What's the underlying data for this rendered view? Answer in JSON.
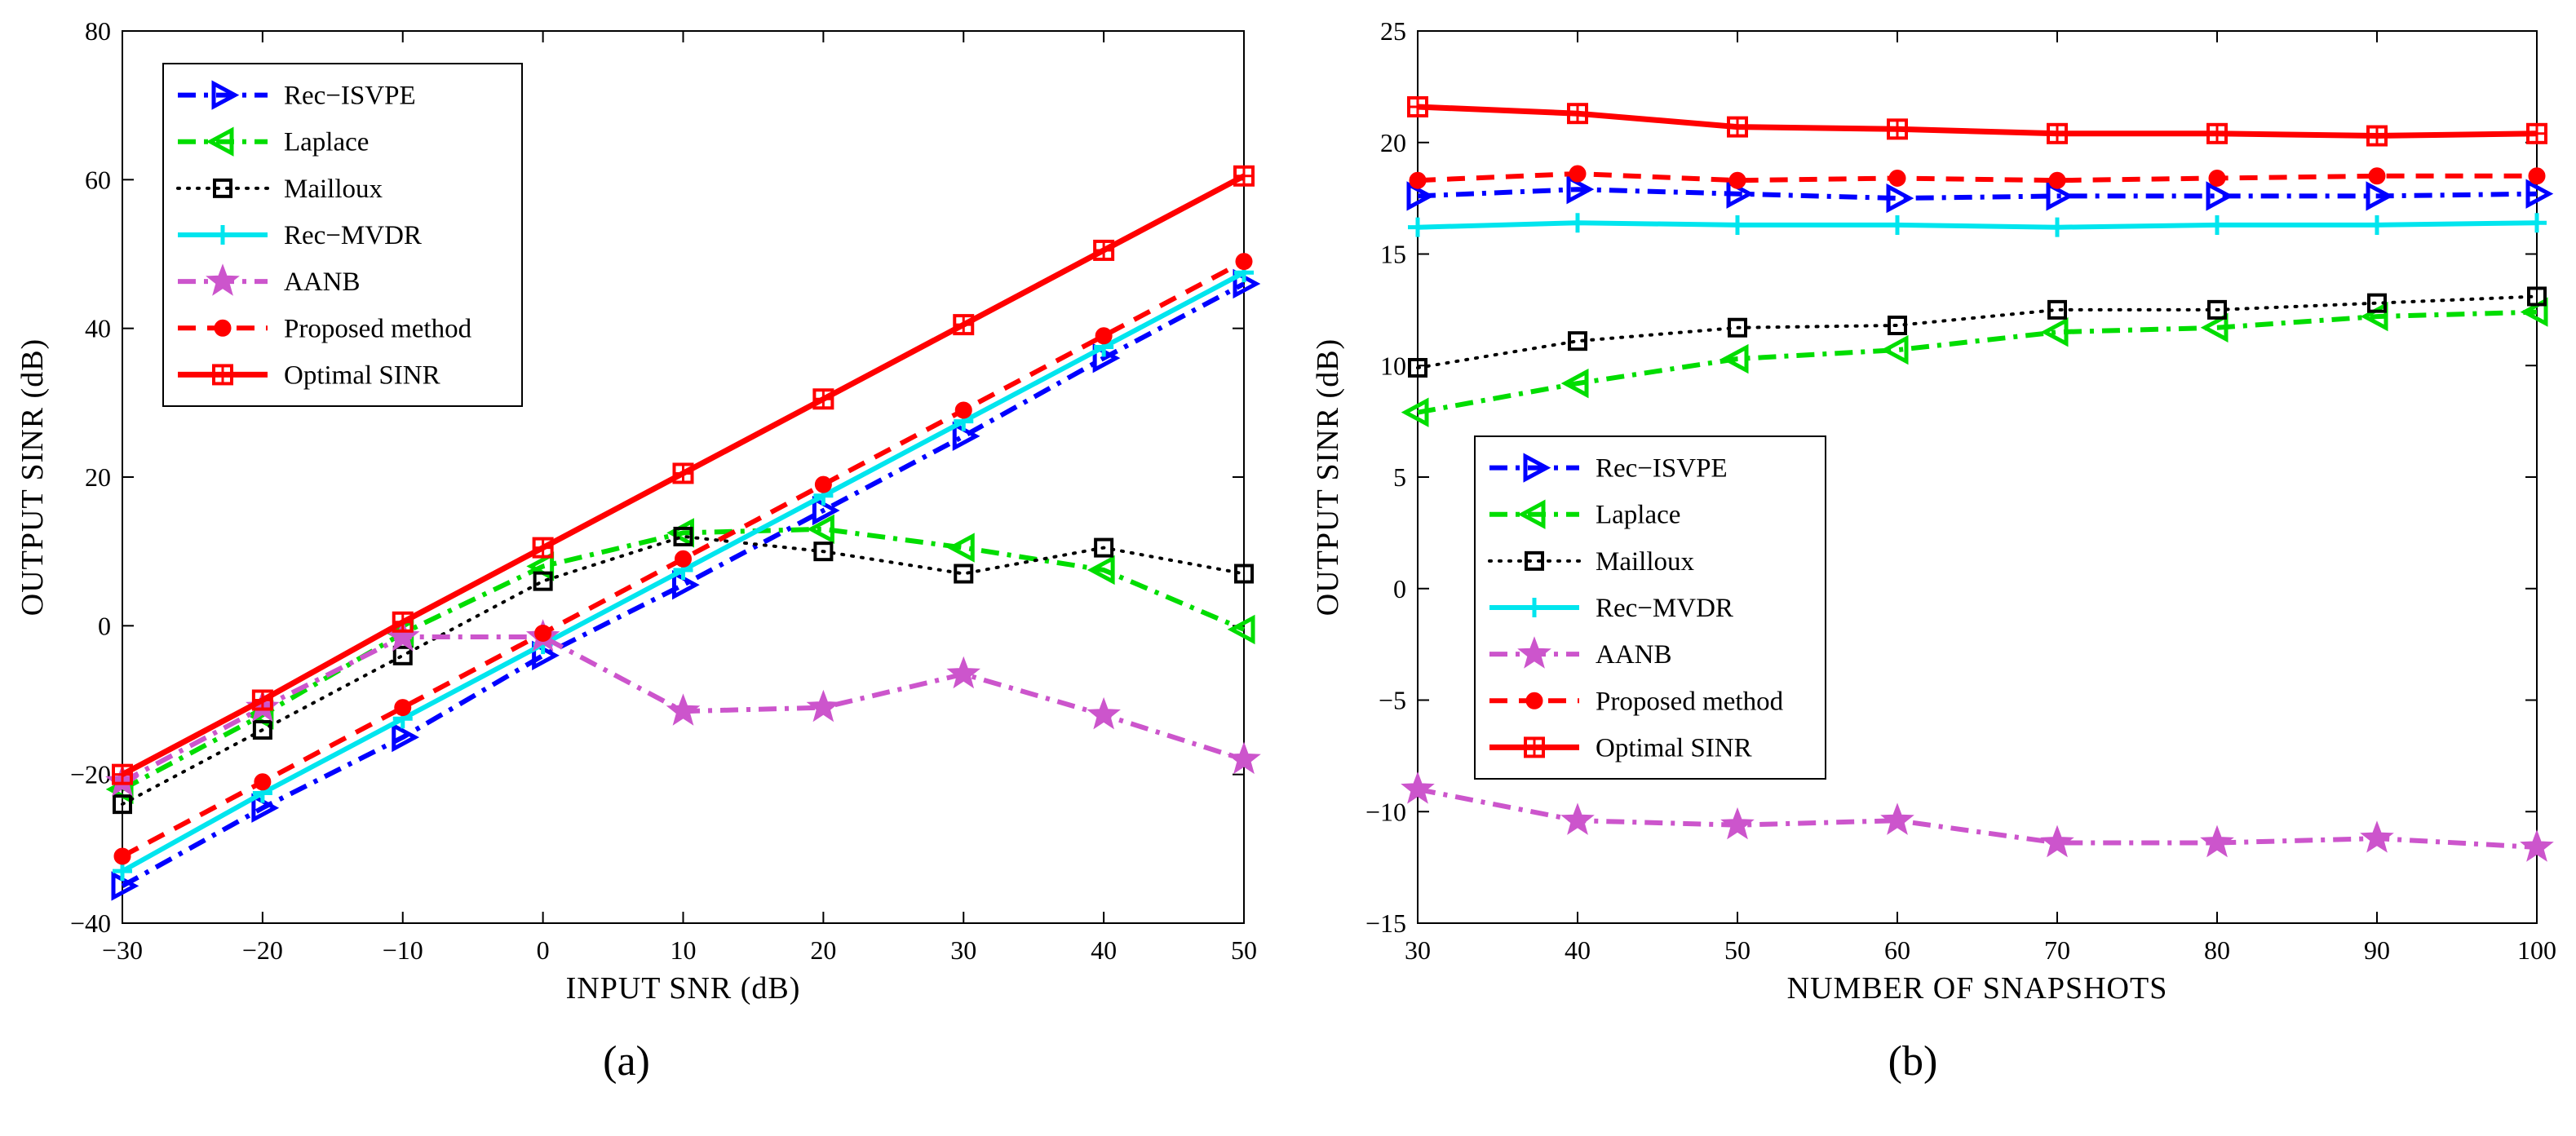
{
  "chart_data": [
    {
      "type": "line",
      "caption": "(a)",
      "xlabel": "INPUT SNR (dB)",
      "ylabel": "OUTPUT SINR (dB)",
      "xlim": [
        -30,
        50
      ],
      "ylim": [
        -40,
        80
      ],
      "xticks": [
        -30,
        -20,
        -10,
        0,
        10,
        20,
        30,
        40,
        50
      ],
      "yticks": [
        -40,
        -20,
        0,
        20,
        40,
        60,
        80
      ],
      "legend_position": "top-left",
      "x": [
        -30,
        -20,
        -10,
        0,
        10,
        20,
        30,
        40,
        50
      ],
      "series": [
        {
          "name": "Rec−ISVPE",
          "color": "#0000ff",
          "values": [
            -35,
            -24.5,
            -15,
            -4,
            5.5,
            15.5,
            25.5,
            36,
            46
          ]
        },
        {
          "name": "Laplace",
          "color": "#00dd00",
          "values": [
            -22,
            -12,
            -1,
            8,
            12.5,
            13,
            10.5,
            7.5,
            -0.5
          ]
        },
        {
          "name": "Mailloux",
          "color": "#000000",
          "values": [
            -24,
            -14,
            -4,
            6,
            12,
            10,
            7,
            10.5,
            7
          ]
        },
        {
          "name": "Rec−MVDR",
          "color": "#00e5ee",
          "values": [
            -33,
            -22.5,
            -12.5,
            -2.5,
            7.5,
            17.5,
            27.5,
            37.5,
            47.5
          ]
        },
        {
          "name": "AANB",
          "color": "#cc55cc",
          "values": [
            -21,
            -11,
            -1.5,
            -1.5,
            -11.5,
            -11,
            -6.5,
            -12,
            -18
          ]
        },
        {
          "name": "Proposed method",
          "color": "#ff0000",
          "values": [
            -31,
            -21,
            -11,
            -1,
            9,
            19,
            29,
            39,
            49
          ]
        },
        {
          "name": "Optimal SINR",
          "color": "#ff0000",
          "values": [
            -20,
            -10,
            0.5,
            10.5,
            20.5,
            30.5,
            40.5,
            50.5,
            60.5
          ]
        }
      ]
    },
    {
      "type": "line",
      "caption": "(b)",
      "xlabel": "NUMBER OF SNAPSHOTS",
      "ylabel": "OUTPUT SINR (dB)",
      "xlim": [
        30,
        100
      ],
      "ylim": [
        -15,
        25
      ],
      "xticks": [
        30,
        40,
        50,
        60,
        70,
        80,
        90,
        100
      ],
      "yticks": [
        -15,
        -10,
        -5,
        0,
        5,
        10,
        15,
        20,
        25
      ],
      "legend_position": "center-left",
      "x": [
        30,
        40,
        50,
        60,
        70,
        80,
        90,
        100
      ],
      "series": [
        {
          "name": "Rec−ISVPE",
          "color": "#0000ff",
          "values": [
            17.6,
            17.9,
            17.7,
            17.5,
            17.6,
            17.6,
            17.6,
            17.7
          ]
        },
        {
          "name": "Laplace",
          "color": "#00dd00",
          "values": [
            7.9,
            9.2,
            10.3,
            10.7,
            11.5,
            11.7,
            12.2,
            12.4
          ]
        },
        {
          "name": "Mailloux",
          "color": "#000000",
          "values": [
            9.9,
            11.1,
            11.7,
            11.8,
            12.5,
            12.5,
            12.8,
            13.1
          ]
        },
        {
          "name": "Rec−MVDR",
          "color": "#00e5ee",
          "values": [
            16.2,
            16.4,
            16.3,
            16.3,
            16.2,
            16.3,
            16.3,
            16.4
          ]
        },
        {
          "name": "AANB",
          "color": "#cc55cc",
          "values": [
            -9.0,
            -10.4,
            -10.6,
            -10.4,
            -11.4,
            -11.4,
            -11.2,
            -11.6
          ]
        },
        {
          "name": "Proposed method",
          "color": "#ff0000",
          "values": [
            18.3,
            18.6,
            18.3,
            18.4,
            18.3,
            18.4,
            18.5,
            18.5
          ]
        },
        {
          "name": "Optimal SINR",
          "color": "#ff0000",
          "values": [
            21.6,
            21.3,
            20.7,
            20.6,
            20.4,
            20.4,
            20.3,
            20.4
          ]
        }
      ]
    }
  ]
}
